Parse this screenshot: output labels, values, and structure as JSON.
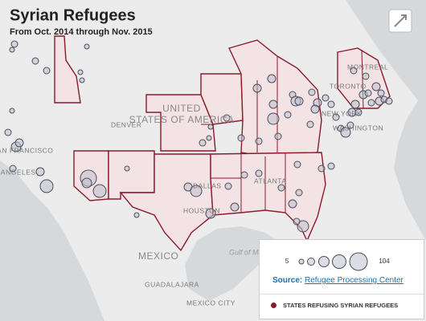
{
  "header": {
    "title": "Syrian Refugees",
    "subtitle": "From Oct. 2014 through Nov. 2015"
  },
  "map": {
    "labels": [
      "MONTREAL",
      "TORONTO",
      "NEW YORK",
      "WASHINGTON",
      "UNITED",
      "STATES OF AMERICA",
      "DENVER",
      "DALLAS",
      "HOUSTON",
      "ATLANTA",
      "SAN FRANCISCO",
      "LOS ANGELES",
      "MEXICO",
      "GUADALAJARA",
      "MEXICO CITY",
      "Gulf of Mexico"
    ]
  },
  "legend": {
    "size_min": 5,
    "size_max": 104,
    "source_label": "Source:",
    "source_link": "Refugee Processing Center",
    "refusing_label": "STATES REFUSING SYRIAN REFUGEES"
  }
}
